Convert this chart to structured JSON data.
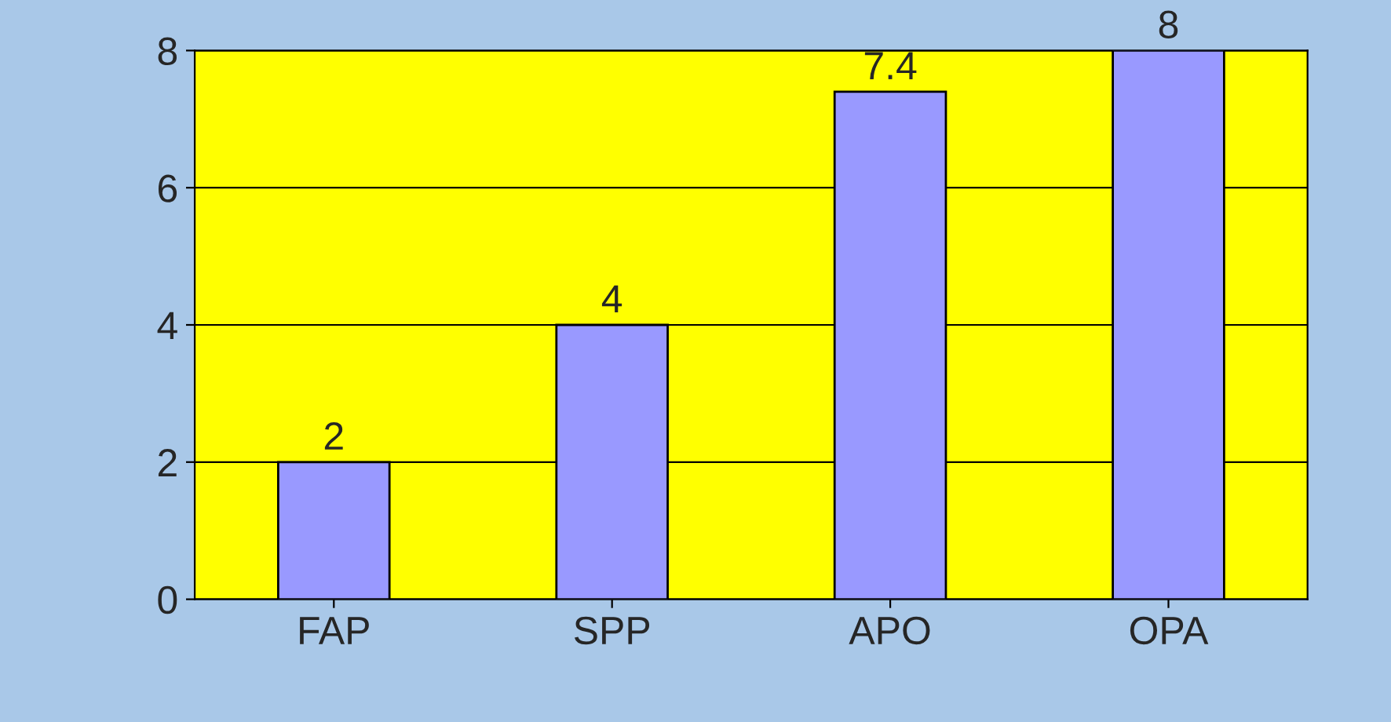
{
  "chart_data": {
    "type": "bar",
    "categories": [
      "FAP",
      "SPP",
      "APO",
      "OPA"
    ],
    "values": [
      2,
      4,
      7.4,
      8
    ],
    "color": "#9999ff",
    "ylim": [
      0,
      8
    ],
    "yticks": [
      0,
      2,
      4,
      6,
      8
    ],
    "grid": "y",
    "data_labels": true
  }
}
